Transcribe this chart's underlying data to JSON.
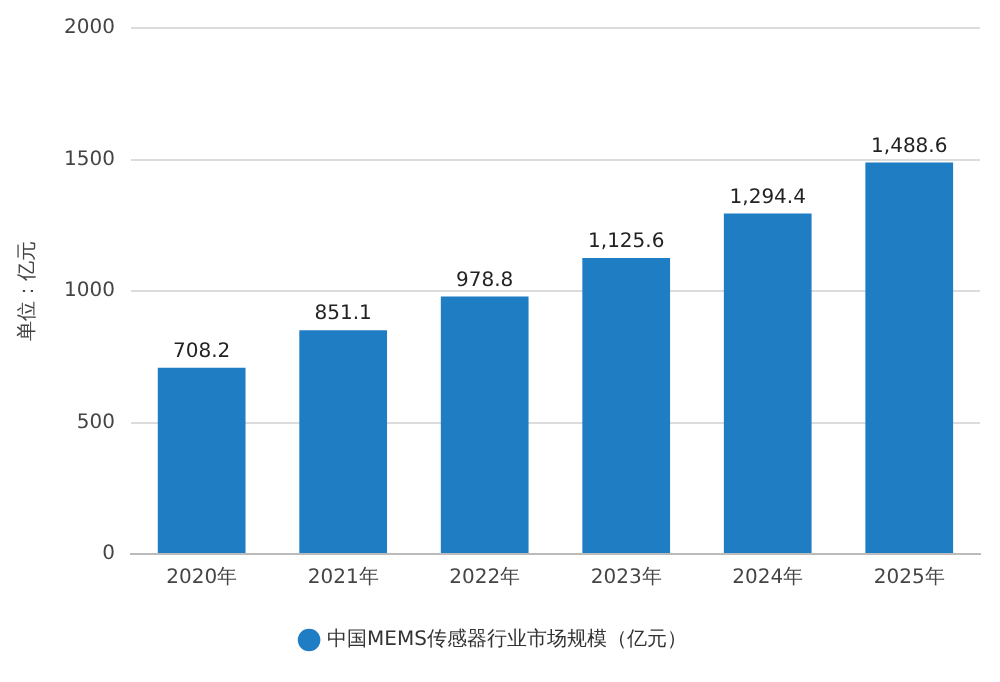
{
  "chart_data": {
    "type": "bar",
    "ylabel": "单位：亿元",
    "categories": [
      "2020年",
      "2021年",
      "2022年",
      "2023年",
      "2024年",
      "2025年"
    ],
    "series": [
      {
        "name": "中国MEMS传感器行业市场规模（亿元）",
        "color": "#1f7dc4",
        "values": [
          708.2,
          851.1,
          978.8,
          1125.6,
          1294.4,
          1488.6
        ],
        "value_labels": [
          "708.2",
          "851.1",
          "978.8",
          "1,125.6",
          "1,294.4",
          "1,488.6"
        ]
      }
    ],
    "ylim": [
      0,
      2000
    ],
    "yticks": [
      0,
      500,
      1000,
      1500,
      2000
    ],
    "grid": "y",
    "legend": "bottom"
  }
}
